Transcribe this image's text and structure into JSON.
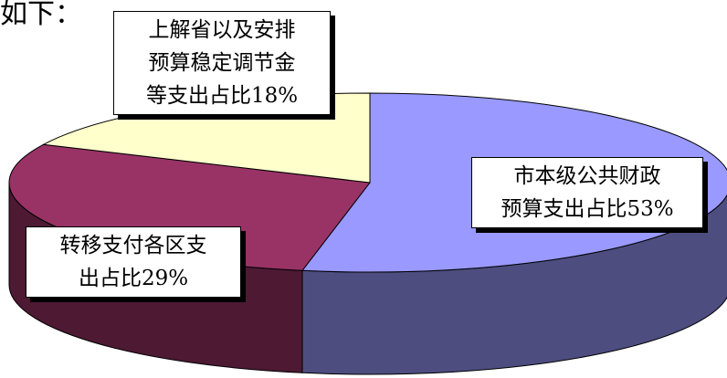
{
  "page": {
    "top_text": "如下："
  },
  "chart_data": {
    "type": "pie",
    "style": "3d",
    "title": "",
    "slices": [
      {
        "label_lines": [
          "市本级公共财政",
          "预算支出占比53%"
        ],
        "value": 53,
        "color": "#9999ff",
        "side_color": "#4d4d80"
      },
      {
        "label_lines": [
          "转移支付各区支",
          "出占比29%"
        ],
        "value": 29,
        "color": "#993366",
        "side_color": "#4d1933"
      },
      {
        "label_lines": [
          "上解省以及安排",
          "预算稳定调节金",
          "等支出占比18%"
        ],
        "value": 18,
        "color": "#ffffcc",
        "side_color": "#808066"
      }
    ]
  }
}
